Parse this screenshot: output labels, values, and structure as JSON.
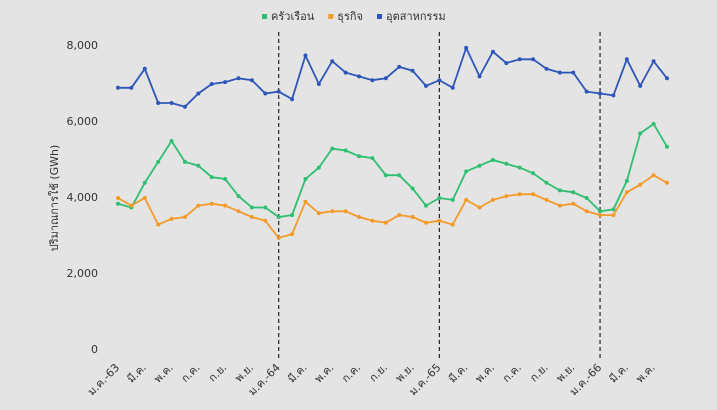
{
  "chart_data": {
    "type": "line",
    "y_label": "ปริมาณการใช้ (GWh)",
    "categories": [
      "ม.ค.-63",
      null,
      "มี.ค.",
      null,
      "พ.ค.",
      null,
      "ก.ค.",
      null,
      "ก.ย.",
      null,
      "พ.ย.",
      null,
      "ม.ค.-64",
      null,
      "มี.ค.",
      null,
      "พ.ค.",
      null,
      "ก.ค.",
      null,
      "ก.ย.",
      null,
      "พ.ย.",
      null,
      "ม.ค.-65",
      null,
      "มี.ค.",
      null,
      "พ.ค.",
      null,
      "ก.ค.",
      null,
      "ก.ย.",
      null,
      "พ.ย.",
      null,
      "ม.ค.-66",
      null,
      "มี.ค.",
      null,
      "พ.ค.",
      null
    ],
    "series": [
      {
        "name": "ครัวเรือน",
        "color": "#2fbf71",
        "values": [
          3850,
          3750,
          4400,
          4950,
          5500,
          4950,
          4850,
          4550,
          4500,
          4050,
          3750,
          3750,
          3500,
          3550,
          4500,
          4800,
          5300,
          5250,
          5100,
          5050,
          4600,
          4600,
          4250,
          3800,
          4000,
          3950,
          4700,
          4850,
          5000,
          4900,
          4800,
          4650,
          4400,
          4200,
          4150,
          4000,
          3650,
          3700,
          4450,
          5700,
          5950,
          5350
        ]
      },
      {
        "name": "ธุรกิจ",
        "color": "#f39a2b",
        "values": [
          4000,
          3800,
          4000,
          3300,
          3450,
          3500,
          3800,
          3850,
          3800,
          3650,
          3500,
          3400,
          2950,
          3050,
          3900,
          3600,
          3650,
          3650,
          3500,
          3400,
          3350,
          3550,
          3500,
          3350,
          3400,
          3300,
          3950,
          3750,
          3950,
          4050,
          4100,
          4100,
          3950,
          3800,
          3850,
          3650,
          3550,
          3550,
          4150,
          4350,
          4600,
          4400
        ]
      },
      {
        "name": "อุตสาหกรรม",
        "color": "#2e56b8",
        "values": [
          6900,
          6900,
          7400,
          6500,
          6500,
          6400,
          6750,
          7000,
          7050,
          7150,
          7100,
          6750,
          6800,
          6600,
          7750,
          7000,
          7600,
          7300,
          7200,
          7100,
          7150,
          7450,
          7350,
          6950,
          7100,
          6900,
          7950,
          7200,
          7850,
          7550,
          7650,
          7650,
          7400,
          7300,
          7300,
          6800,
          6750,
          6700,
          7650,
          6950,
          7600,
          7150
        ]
      }
    ],
    "ylim": [
      0,
      8000
    ],
    "yticks": [
      0,
      {
        "value": 2000,
        "label": "2,000"
      },
      {
        "value": 4000,
        "label": "4,000"
      },
      {
        "value": 6000,
        "label": "6,000"
      },
      {
        "value": 8000,
        "label": "8,000"
      }
    ],
    "year_separators": [
      12,
      24,
      36
    ],
    "legend": "top"
  }
}
